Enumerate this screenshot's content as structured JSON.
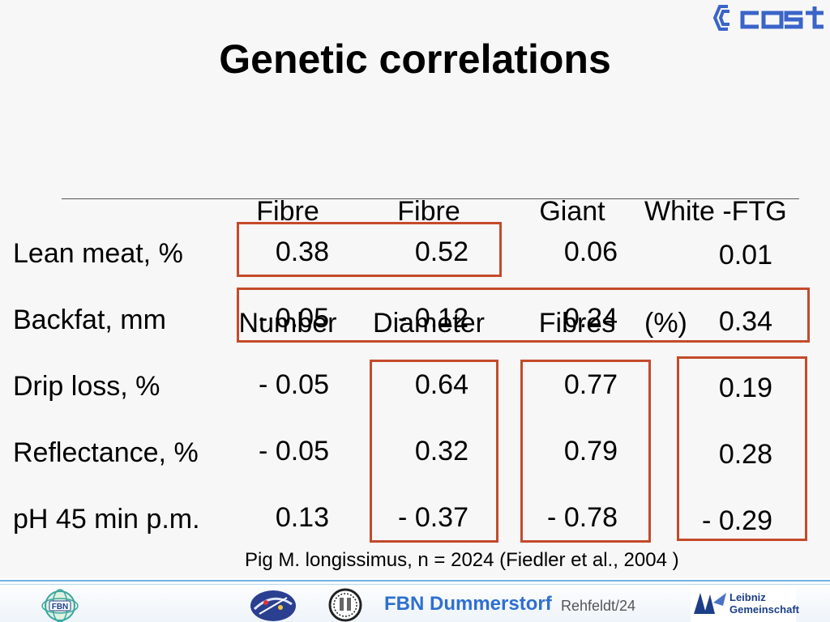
{
  "title": "Genetic correlations",
  "columns": [
    {
      "line1": "Fibre",
      "line2": "Number"
    },
    {
      "line1": "Fibre",
      "line2": "Diameter"
    },
    {
      "line1": "Giant",
      "line2": "Fibres"
    },
    {
      "line1": "White -FTG",
      "line2": "(%)"
    }
  ],
  "rows": [
    {
      "label": "Lean meat, %",
      "values": [
        "0.38",
        "0.52",
        "0.06",
        "0.01"
      ]
    },
    {
      "label": "Backfat, mm",
      "values": [
        "- 0.05",
        "- 0.12",
        "0.24",
        "0.34"
      ]
    },
    {
      "label": "Drip loss, %",
      "values": [
        "- 0.05",
        "0.64",
        "0.77",
        "0.19"
      ]
    },
    {
      "label": "Reflectance, %",
      "values": [
        "- 0.05",
        "0.32",
        "0.79",
        "0.28"
      ]
    },
    {
      "label": "pH 45 min p.m.",
      "values": [
        "0.13",
        "- 0.37",
        "- 0.78",
        "- 0.29"
      ]
    }
  ],
  "caption": "Pig M. longissimus,  n = 2024 (Fiedler et al., 2004 )",
  "footer": {
    "institute": "FBN Dummerstorf",
    "author": "Rehfeldt/24",
    "fbn_logo_text": "FBN",
    "leibniz_line1": "Leibniz",
    "leibniz_line2": "Gemeinschaft"
  },
  "colors": {
    "highlight_box": "#c44a2b",
    "footer_line": "#6fb4e4",
    "institute_text": "#2f6fd0",
    "cost_logo": "#3a64c8"
  },
  "icons": [
    "cost-logo",
    "fbn-logo",
    "emblem-icon",
    "seal-icon",
    "leibniz-logo"
  ]
}
